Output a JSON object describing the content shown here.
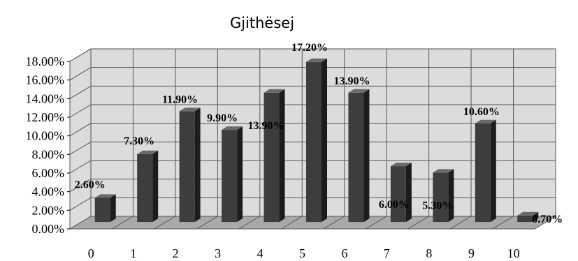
{
  "chart_data": {
    "type": "bar",
    "title": "Gjithësej",
    "xlabel": "",
    "ylabel": "",
    "categories": [
      "0",
      "1",
      "2",
      "3",
      "4",
      "5",
      "6",
      "7",
      "8",
      "9",
      "10"
    ],
    "values": [
      2.6,
      7.3,
      11.9,
      9.9,
      13.9,
      17.2,
      13.9,
      6.0,
      5.3,
      10.6,
      0.7
    ],
    "data_labels": [
      "2.60%",
      "7.30%",
      "11.90%",
      "9.90%",
      "13.90%",
      "17.20%",
      "13.90%",
      "6.00%",
      "5.30%",
      "10.60%",
      "0.70%"
    ],
    "y_tick_labels": [
      "0.00%",
      "2.00%",
      "4.00%",
      "6.00%",
      "8.00%",
      "10.00%",
      "12.00%",
      "14.00%",
      "16.00%",
      "18.00%"
    ],
    "ylim": [
      0,
      18
    ],
    "y_unit": "%",
    "grid": true,
    "legend": "none",
    "style": "3d-column",
    "colors": {
      "bar": "#3d3d3d",
      "bar_side": "#1c1c1c",
      "bar_top": "#6a6a6a",
      "wall": "#dcdcdc",
      "floor": "#a9a9a9",
      "grid": "#555555"
    }
  }
}
